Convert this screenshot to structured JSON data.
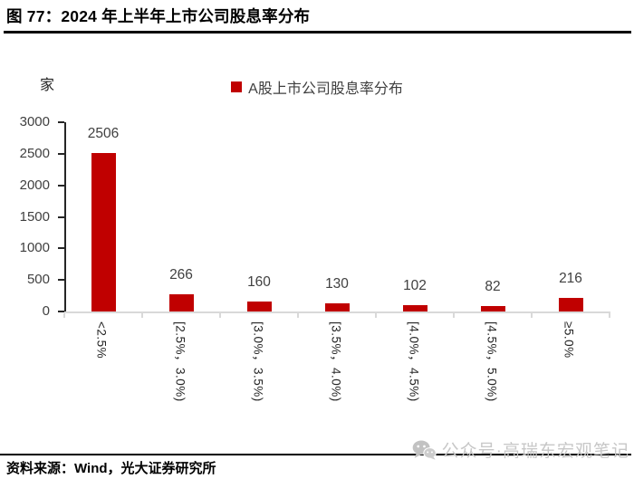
{
  "figure": {
    "title": "图 77：2024 年上半年上市公司股息率分布",
    "source_note": "资料来源：Wind，光大证券研究所",
    "watermark": {
      "icon": "wechat-icon",
      "text": "公众号·高瑞东宏观笔记"
    }
  },
  "chart_data": {
    "type": "bar",
    "legend": [
      "A股上市公司股息率分布"
    ],
    "legend_position": "top-center",
    "unit_label": "家",
    "categories": [
      "<2.5%",
      "[2.5%，3.0%)",
      "[3.0%，3.5%)",
      "[3.5%，4.0%)",
      "[4.0%，4.5%)",
      "[4.5%，5.0%)",
      "≥5.0%"
    ],
    "values": [
      2506,
      266,
      160,
      130,
      102,
      82,
      216
    ],
    "ylim": [
      0,
      3000
    ],
    "yticks": [
      0,
      500,
      1000,
      1500,
      2000,
      2500,
      3000
    ],
    "bar_color": "#c00000",
    "axis_text_color": "#404040",
    "grid": false,
    "data_labels": true,
    "x_label_rotation": "90deg-clockwise"
  }
}
